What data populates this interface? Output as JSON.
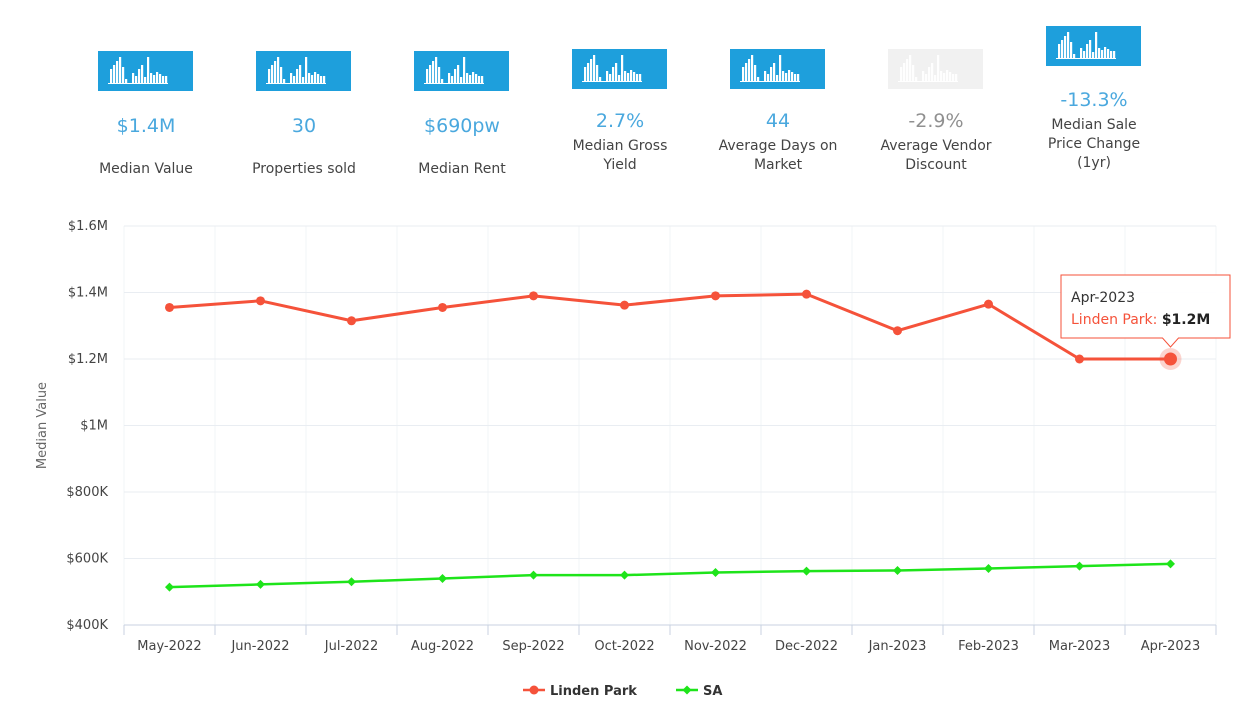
{
  "colors": {
    "tile_bg": "#1e9fdc",
    "tile_faded_bg": "#f1f1f1",
    "linden_park": "#f5523a",
    "sa": "#1ee41a",
    "value_blue": "#4aa8de",
    "value_muted": "#909090"
  },
  "stats": [
    {
      "icon": "bar-chart-icon",
      "value": "$1.4M",
      "label": "Median Value",
      "faded": false
    },
    {
      "icon": "bar-chart-icon",
      "value": "30",
      "label": "Properties sold",
      "faded": false
    },
    {
      "icon": "bar-chart-icon",
      "value": "$690pw",
      "label": "Median Rent",
      "faded": false
    },
    {
      "icon": "bar-chart-icon",
      "value": "2.7%",
      "label": "Median Gross Yield",
      "faded": false
    },
    {
      "icon": "bar-chart-icon",
      "value": "44",
      "label": "Average Days on Market",
      "faded": false
    },
    {
      "icon": "bar-chart-icon",
      "value": "-2.9%",
      "label": "Average Vendor Discount",
      "faded": true
    },
    {
      "icon": "bar-chart-icon",
      "value": "-13.3%",
      "label": "Median Sale Price Change (1yr)",
      "faded": false
    }
  ],
  "chart_data": {
    "type": "line",
    "title": "",
    "xlabel": "",
    "ylabel": "Median Value",
    "ylim": [
      400000,
      1600000
    ],
    "y_ticks": [
      400000,
      600000,
      800000,
      1000000,
      1200000,
      1400000,
      1600000
    ],
    "y_tick_labels": [
      "$400K",
      "$600K",
      "$800K",
      "$1M",
      "$1.2M",
      "$1.4M",
      "$1.6M"
    ],
    "categories": [
      "May-2022",
      "Jun-2022",
      "Jul-2022",
      "Aug-2022",
      "Sep-2022",
      "Oct-2022",
      "Nov-2022",
      "Dec-2022",
      "Jan-2023",
      "Feb-2023",
      "Mar-2023",
      "Apr-2023"
    ],
    "series": [
      {
        "name": "Linden Park",
        "marker": "circle",
        "values": [
          1355000,
          1375000,
          1315000,
          1355000,
          1390000,
          1362000,
          1390000,
          1395000,
          1285000,
          1365000,
          1200000,
          1200000
        ]
      },
      {
        "name": "SA",
        "marker": "diamond",
        "values": [
          514000,
          522000,
          530000,
          540000,
          550000,
          550000,
          558000,
          562000,
          564000,
          570000,
          577000,
          584000
        ]
      }
    ],
    "legend_position": "bottom",
    "tooltip": {
      "category": "Apr-2023",
      "series": "Linden Park",
      "series_label": "Linden Park:",
      "value_label": "$1.2M"
    }
  }
}
